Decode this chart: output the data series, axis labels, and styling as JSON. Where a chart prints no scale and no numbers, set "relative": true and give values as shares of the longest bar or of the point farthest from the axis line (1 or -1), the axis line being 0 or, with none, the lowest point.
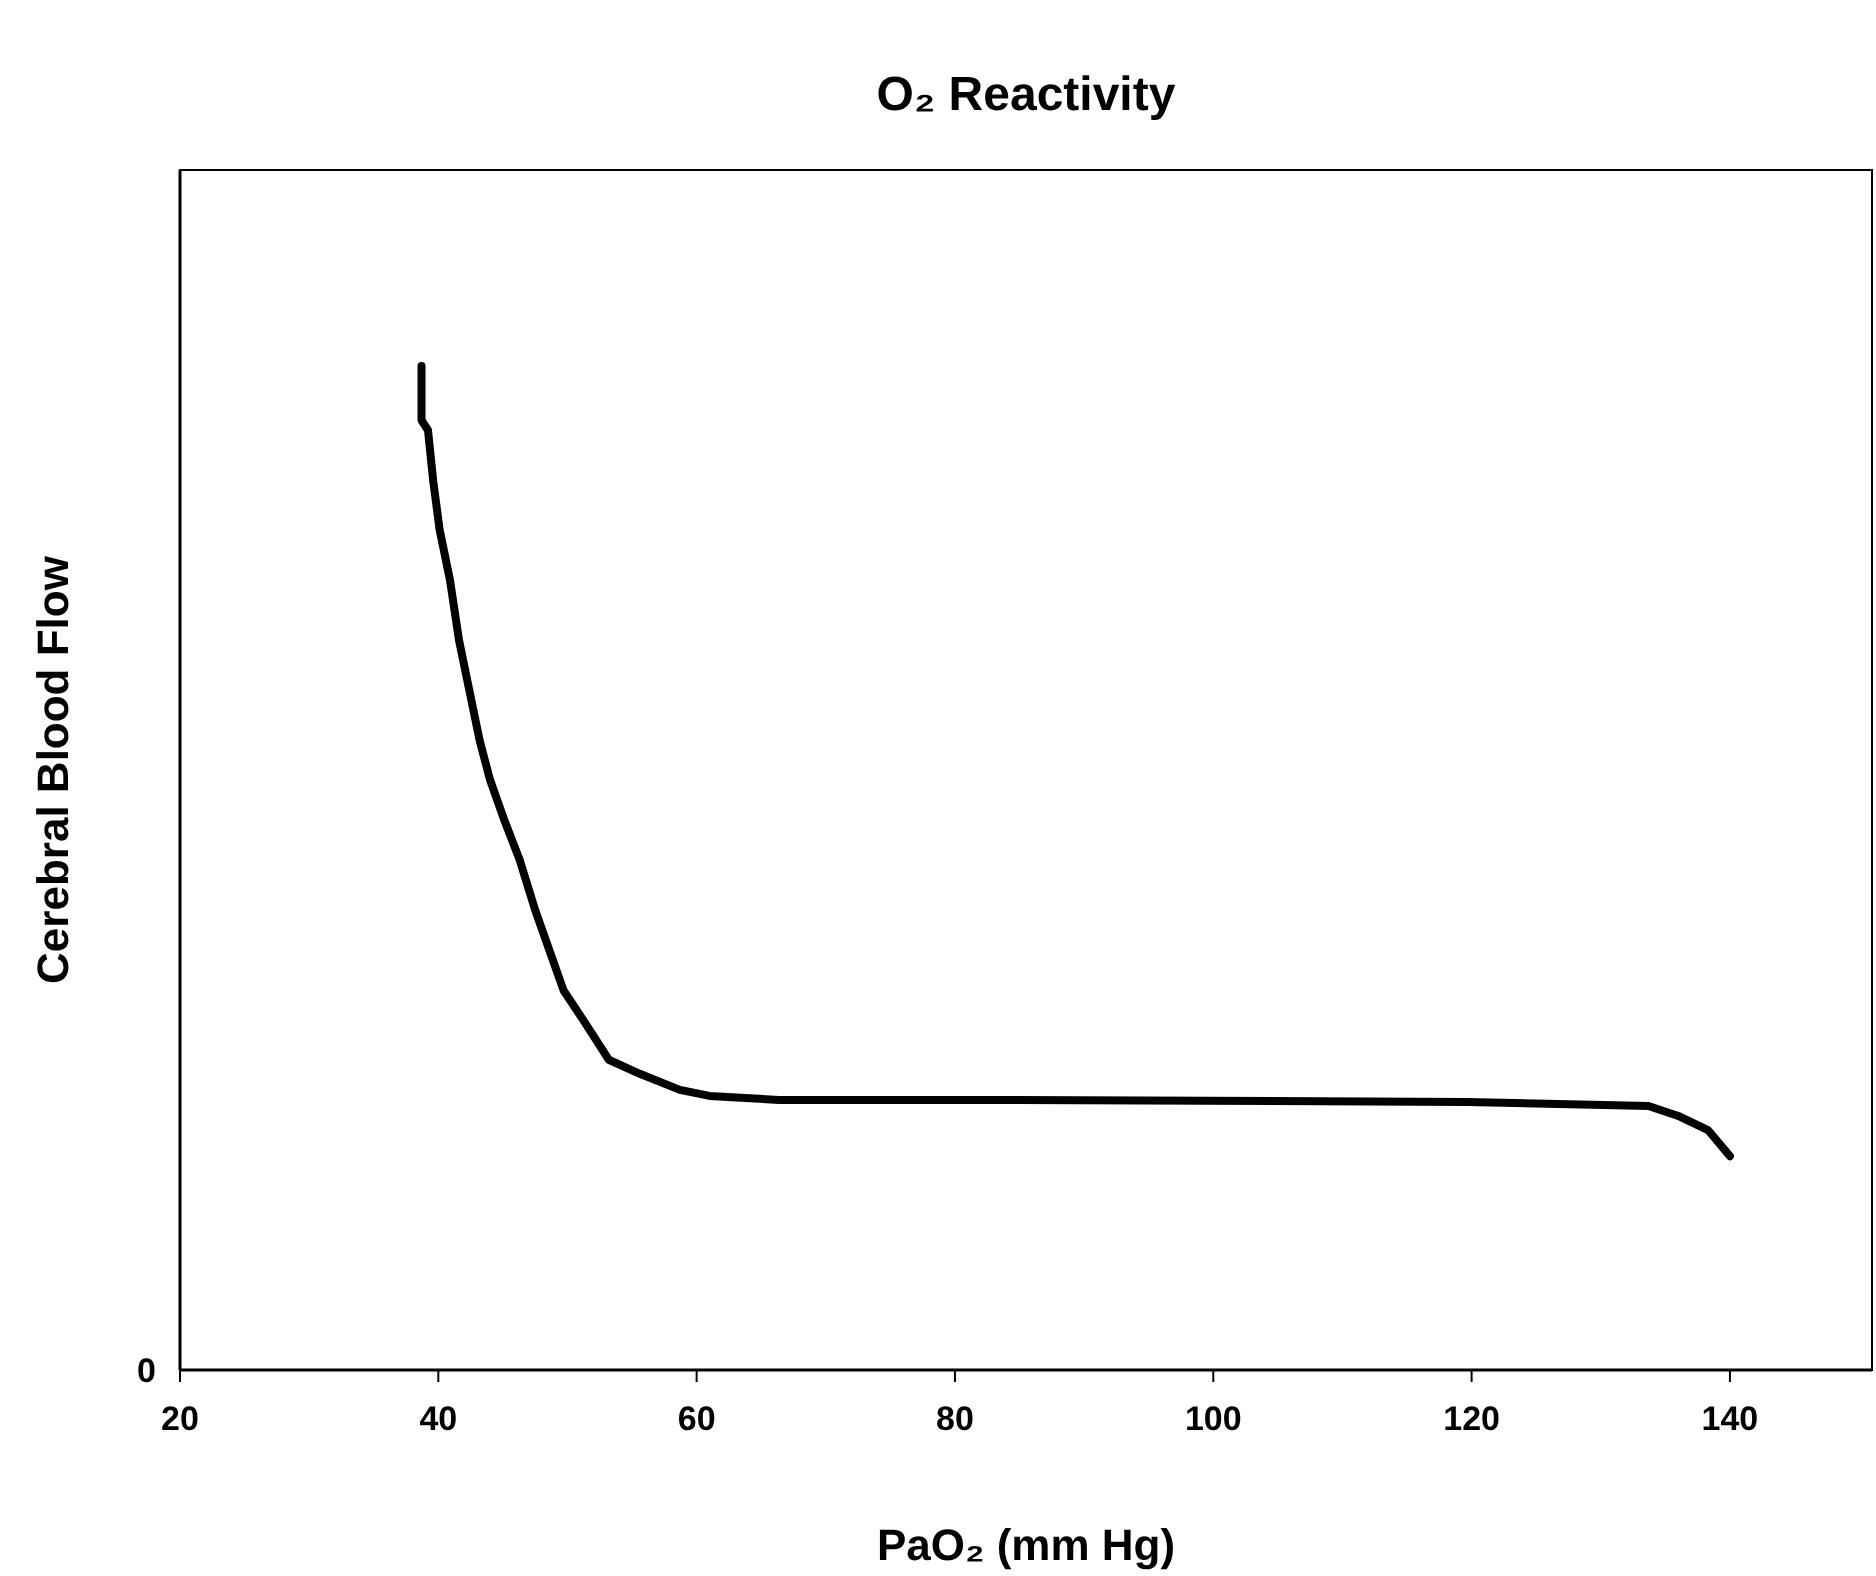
{
  "chart_data": {
    "type": "line",
    "title": "O₂ Reactivity",
    "xlabel": "PaO₂ (mm Hg)",
    "ylabel": "Cerebral Blood Flow",
    "relative": true,
    "annotations": [
      "0"
    ],
    "xlim": [
      20,
      151
    ],
    "xticks": [
      20,
      40,
      60,
      80,
      100,
      120,
      140
    ],
    "grid": false,
    "marker": "none",
    "line_style": "solid",
    "series": [
      {
        "color": "#000000",
        "x": [
          38.7,
          38.7,
          39.2,
          39.6,
          40.1,
          40.9,
          41.6,
          42.4,
          43.2,
          44.0,
          45.1,
          46.3,
          47.5,
          48.6,
          49.7,
          51.2,
          53.2,
          55.6,
          58.7,
          61.0,
          66.4,
          83.4,
          119.7,
          133.7,
          136.0,
          138.3,
          140.0
        ],
        "values": [
          1,
          0.946,
          0.936,
          0.886,
          0.837,
          0.787,
          0.727,
          0.677,
          0.627,
          0.588,
          0.548,
          0.508,
          0.458,
          0.418,
          0.378,
          0.349,
          0.309,
          0.295,
          0.279,
          0.273,
          0.269,
          0.269,
          0.267,
          0.263,
          0.253,
          0.239,
          0.213
        ]
      }
    ]
  }
}
